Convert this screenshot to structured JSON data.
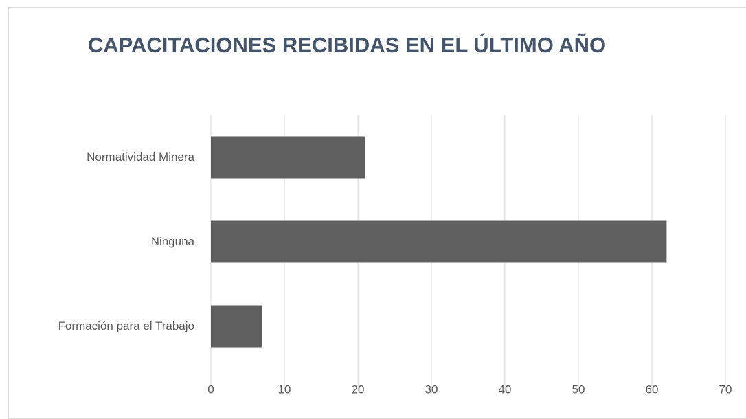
{
  "chart_data": {
    "type": "bar",
    "orientation": "horizontal",
    "title": "CAPACITACIONES  RECIBIDAS EN EL ÚLTIMO AÑO",
    "categories": [
      "Normatividad Minera",
      "Ninguna",
      "Formación para el Trabajo"
    ],
    "values": [
      21,
      62,
      7
    ],
    "color": "#5f5f5f",
    "xlim": [
      0,
      70
    ],
    "xticks": [
      0,
      10,
      20,
      30,
      40,
      50,
      60,
      70
    ],
    "grid": true
  }
}
